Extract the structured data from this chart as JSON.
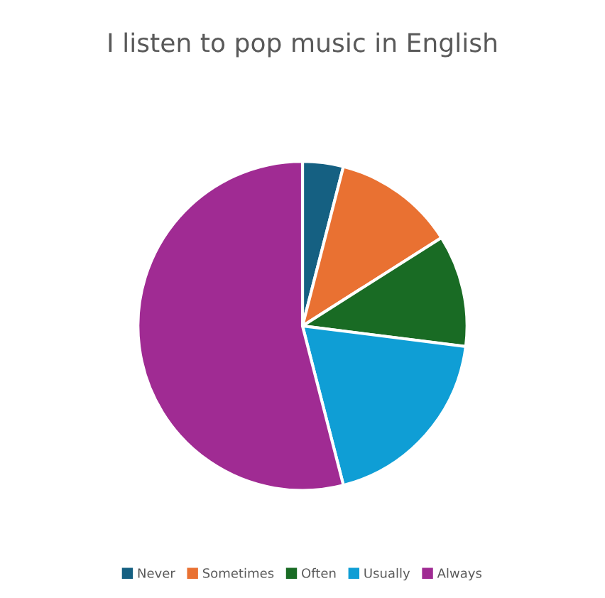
{
  "chart_data": {
    "type": "pie",
    "title": "I listen to pop music in English",
    "categories": [
      "Never",
      "Sometimes",
      "Often",
      "Usually",
      "Always"
    ],
    "values": [
      4,
      12,
      11,
      19,
      54
    ],
    "colors": [
      "#156082",
      "#e97132",
      "#196b24",
      "#0f9ed5",
      "#a02b93"
    ],
    "legend": "bottom"
  }
}
